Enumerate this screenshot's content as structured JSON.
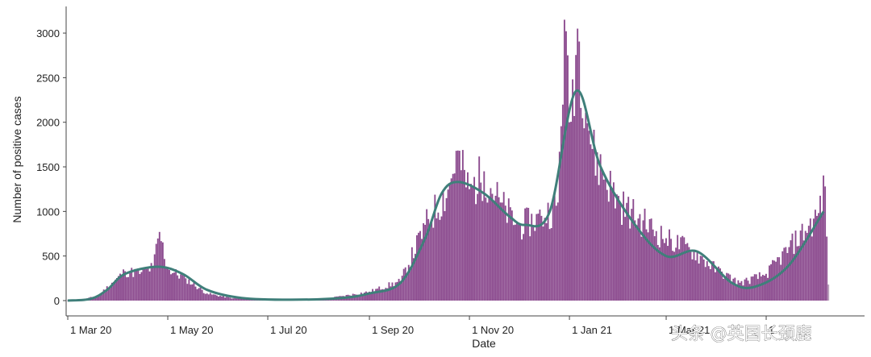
{
  "chart_data": {
    "type": "bar",
    "xlabel": "Date",
    "ylabel": "Number of positive cases",
    "ylim": [
      0,
      3100
    ],
    "yticks": [
      0,
      500,
      1000,
      1500,
      2000,
      2500,
      3000
    ],
    "xlim": [
      "2020-02-29",
      "2021-06-30"
    ],
    "xticks": [
      {
        "date": "2020-03-01",
        "label": "1 Mar 20"
      },
      {
        "date": "2020-05-01",
        "label": "1 May 20"
      },
      {
        "date": "2020-07-01",
        "label": "1 Jul 20"
      },
      {
        "date": "2020-09-01",
        "label": "1 Sep 20"
      },
      {
        "date": "2020-11-01",
        "label": "1 Nov 20"
      },
      {
        "date": "2021-01-01",
        "label": "1 Jan 21"
      },
      {
        "date": "2021-03-01",
        "label": "1 Mar 21"
      },
      {
        "date": "2021-05-01",
        "label": "1"
      }
    ],
    "grid": false,
    "legend": "none",
    "series": [
      {
        "kind": "daily-bars",
        "color": "#8b4a8e"
      },
      {
        "kind": "rolling-average-line",
        "color": "#3f7f7a"
      }
    ],
    "daily_keypoints": [
      {
        "date": "2020-03-01",
        "value": 2
      },
      {
        "date": "2020-03-10",
        "value": 10
      },
      {
        "date": "2020-03-20",
        "value": 60
      },
      {
        "date": "2020-03-28",
        "value": 200
      },
      {
        "date": "2020-04-05",
        "value": 330
      },
      {
        "date": "2020-04-15",
        "value": 320
      },
      {
        "date": "2020-04-22",
        "value": 380
      },
      {
        "date": "2020-04-26",
        "value": 770
      },
      {
        "date": "2020-05-01",
        "value": 360
      },
      {
        "date": "2020-05-12",
        "value": 250
      },
      {
        "date": "2020-05-25",
        "value": 80
      },
      {
        "date": "2020-06-10",
        "value": 25
      },
      {
        "date": "2020-07-01",
        "value": 10
      },
      {
        "date": "2020-08-01",
        "value": 10
      },
      {
        "date": "2020-08-15",
        "value": 50
      },
      {
        "date": "2020-09-01",
        "value": 100
      },
      {
        "date": "2020-09-20",
        "value": 220
      },
      {
        "date": "2020-10-05",
        "value": 850
      },
      {
        "date": "2020-10-20",
        "value": 1300
      },
      {
        "date": "2020-10-24",
        "value": 1680
      },
      {
        "date": "2020-11-01",
        "value": 1250
      },
      {
        "date": "2020-11-10",
        "value": 1450
      },
      {
        "date": "2020-11-20",
        "value": 1100
      },
      {
        "date": "2020-12-01",
        "value": 850
      },
      {
        "date": "2020-12-15",
        "value": 950
      },
      {
        "date": "2020-12-25",
        "value": 1100
      },
      {
        "date": "2020-12-29",
        "value": 3150
      },
      {
        "date": "2021-01-01",
        "value": 2000
      },
      {
        "date": "2021-01-06",
        "value": 3050
      },
      {
        "date": "2021-01-15",
        "value": 1700
      },
      {
        "date": "2021-02-01",
        "value": 1100
      },
      {
        "date": "2021-02-15",
        "value": 900
      },
      {
        "date": "2021-03-01",
        "value": 700
      },
      {
        "date": "2021-03-15",
        "value": 600
      },
      {
        "date": "2021-04-01",
        "value": 350
      },
      {
        "date": "2021-04-15",
        "value": 200
      },
      {
        "date": "2021-05-01",
        "value": 300
      },
      {
        "date": "2021-05-15",
        "value": 600
      },
      {
        "date": "2021-06-01",
        "value": 950
      },
      {
        "date": "2021-06-06",
        "value": 1280
      },
      {
        "date": "2021-06-08",
        "value": 180
      }
    ],
    "average_points": [
      {
        "date": "2020-03-01",
        "value": 0
      },
      {
        "date": "2020-03-15",
        "value": 20
      },
      {
        "date": "2020-03-25",
        "value": 120
      },
      {
        "date": "2020-04-05",
        "value": 300
      },
      {
        "date": "2020-04-25",
        "value": 380
      },
      {
        "date": "2020-05-10",
        "value": 300
      },
      {
        "date": "2020-05-25",
        "value": 120
      },
      {
        "date": "2020-06-15",
        "value": 30
      },
      {
        "date": "2020-07-15",
        "value": 10
      },
      {
        "date": "2020-08-15",
        "value": 30
      },
      {
        "date": "2020-09-01",
        "value": 80
      },
      {
        "date": "2020-09-20",
        "value": 200
      },
      {
        "date": "2020-10-05",
        "value": 700
      },
      {
        "date": "2020-10-15",
        "value": 1200
      },
      {
        "date": "2020-10-25",
        "value": 1330
      },
      {
        "date": "2020-11-10",
        "value": 1200
      },
      {
        "date": "2020-11-25",
        "value": 950
      },
      {
        "date": "2020-12-05",
        "value": 850
      },
      {
        "date": "2020-12-20",
        "value": 1000
      },
      {
        "date": "2021-01-05",
        "value": 2350
      },
      {
        "date": "2021-01-20",
        "value": 1500
      },
      {
        "date": "2021-02-10",
        "value": 850
      },
      {
        "date": "2021-03-01",
        "value": 500
      },
      {
        "date": "2021-03-20",
        "value": 550
      },
      {
        "date": "2021-04-10",
        "value": 200
      },
      {
        "date": "2021-04-25",
        "value": 160
      },
      {
        "date": "2021-05-15",
        "value": 400
      },
      {
        "date": "2021-06-05",
        "value": 1000
      }
    ]
  },
  "watermark": {
    "text": "头条 @英国长颈鹿"
  }
}
